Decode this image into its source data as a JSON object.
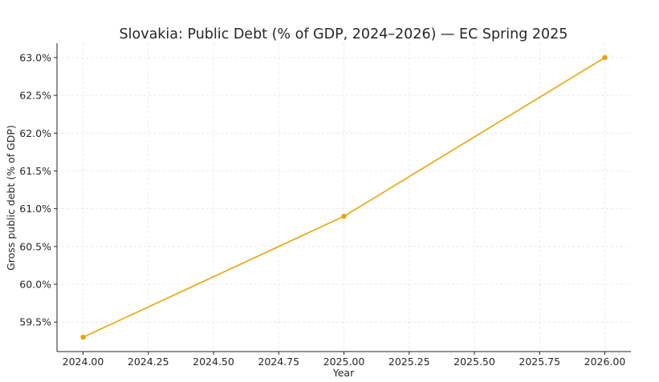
{
  "chart_data": {
    "type": "line",
    "title": "Slovakia: Public Debt (% of GDP, 2024–2026) — EC Spring 2025",
    "xlabel": "Year",
    "ylabel": "Gross public debt (% of GDP)",
    "x_ticks": [
      "2024.00",
      "2024.25",
      "2024.50",
      "2024.75",
      "2025.00",
      "2025.25",
      "2025.50",
      "2025.75",
      "2026.00"
    ],
    "x_tick_values": [
      2024.0,
      2024.25,
      2024.5,
      2024.75,
      2025.0,
      2025.25,
      2025.5,
      2025.75,
      2026.0
    ],
    "y_ticks": [
      "59.5%",
      "60.0%",
      "60.5%",
      "61.0%",
      "61.5%",
      "62.0%",
      "62.5%",
      "63.0%"
    ],
    "y_tick_values": [
      59.5,
      60.0,
      60.5,
      61.0,
      61.5,
      62.0,
      62.5,
      63.0
    ],
    "xlim": [
      2023.9,
      2026.1
    ],
    "ylim": [
      59.11,
      63.19
    ],
    "grid": true,
    "series": [
      {
        "x": [
          2024,
          2025,
          2026
        ],
        "values": [
          59.3,
          60.9,
          63.0
        ],
        "color": "#E5A50A"
      }
    ]
  }
}
